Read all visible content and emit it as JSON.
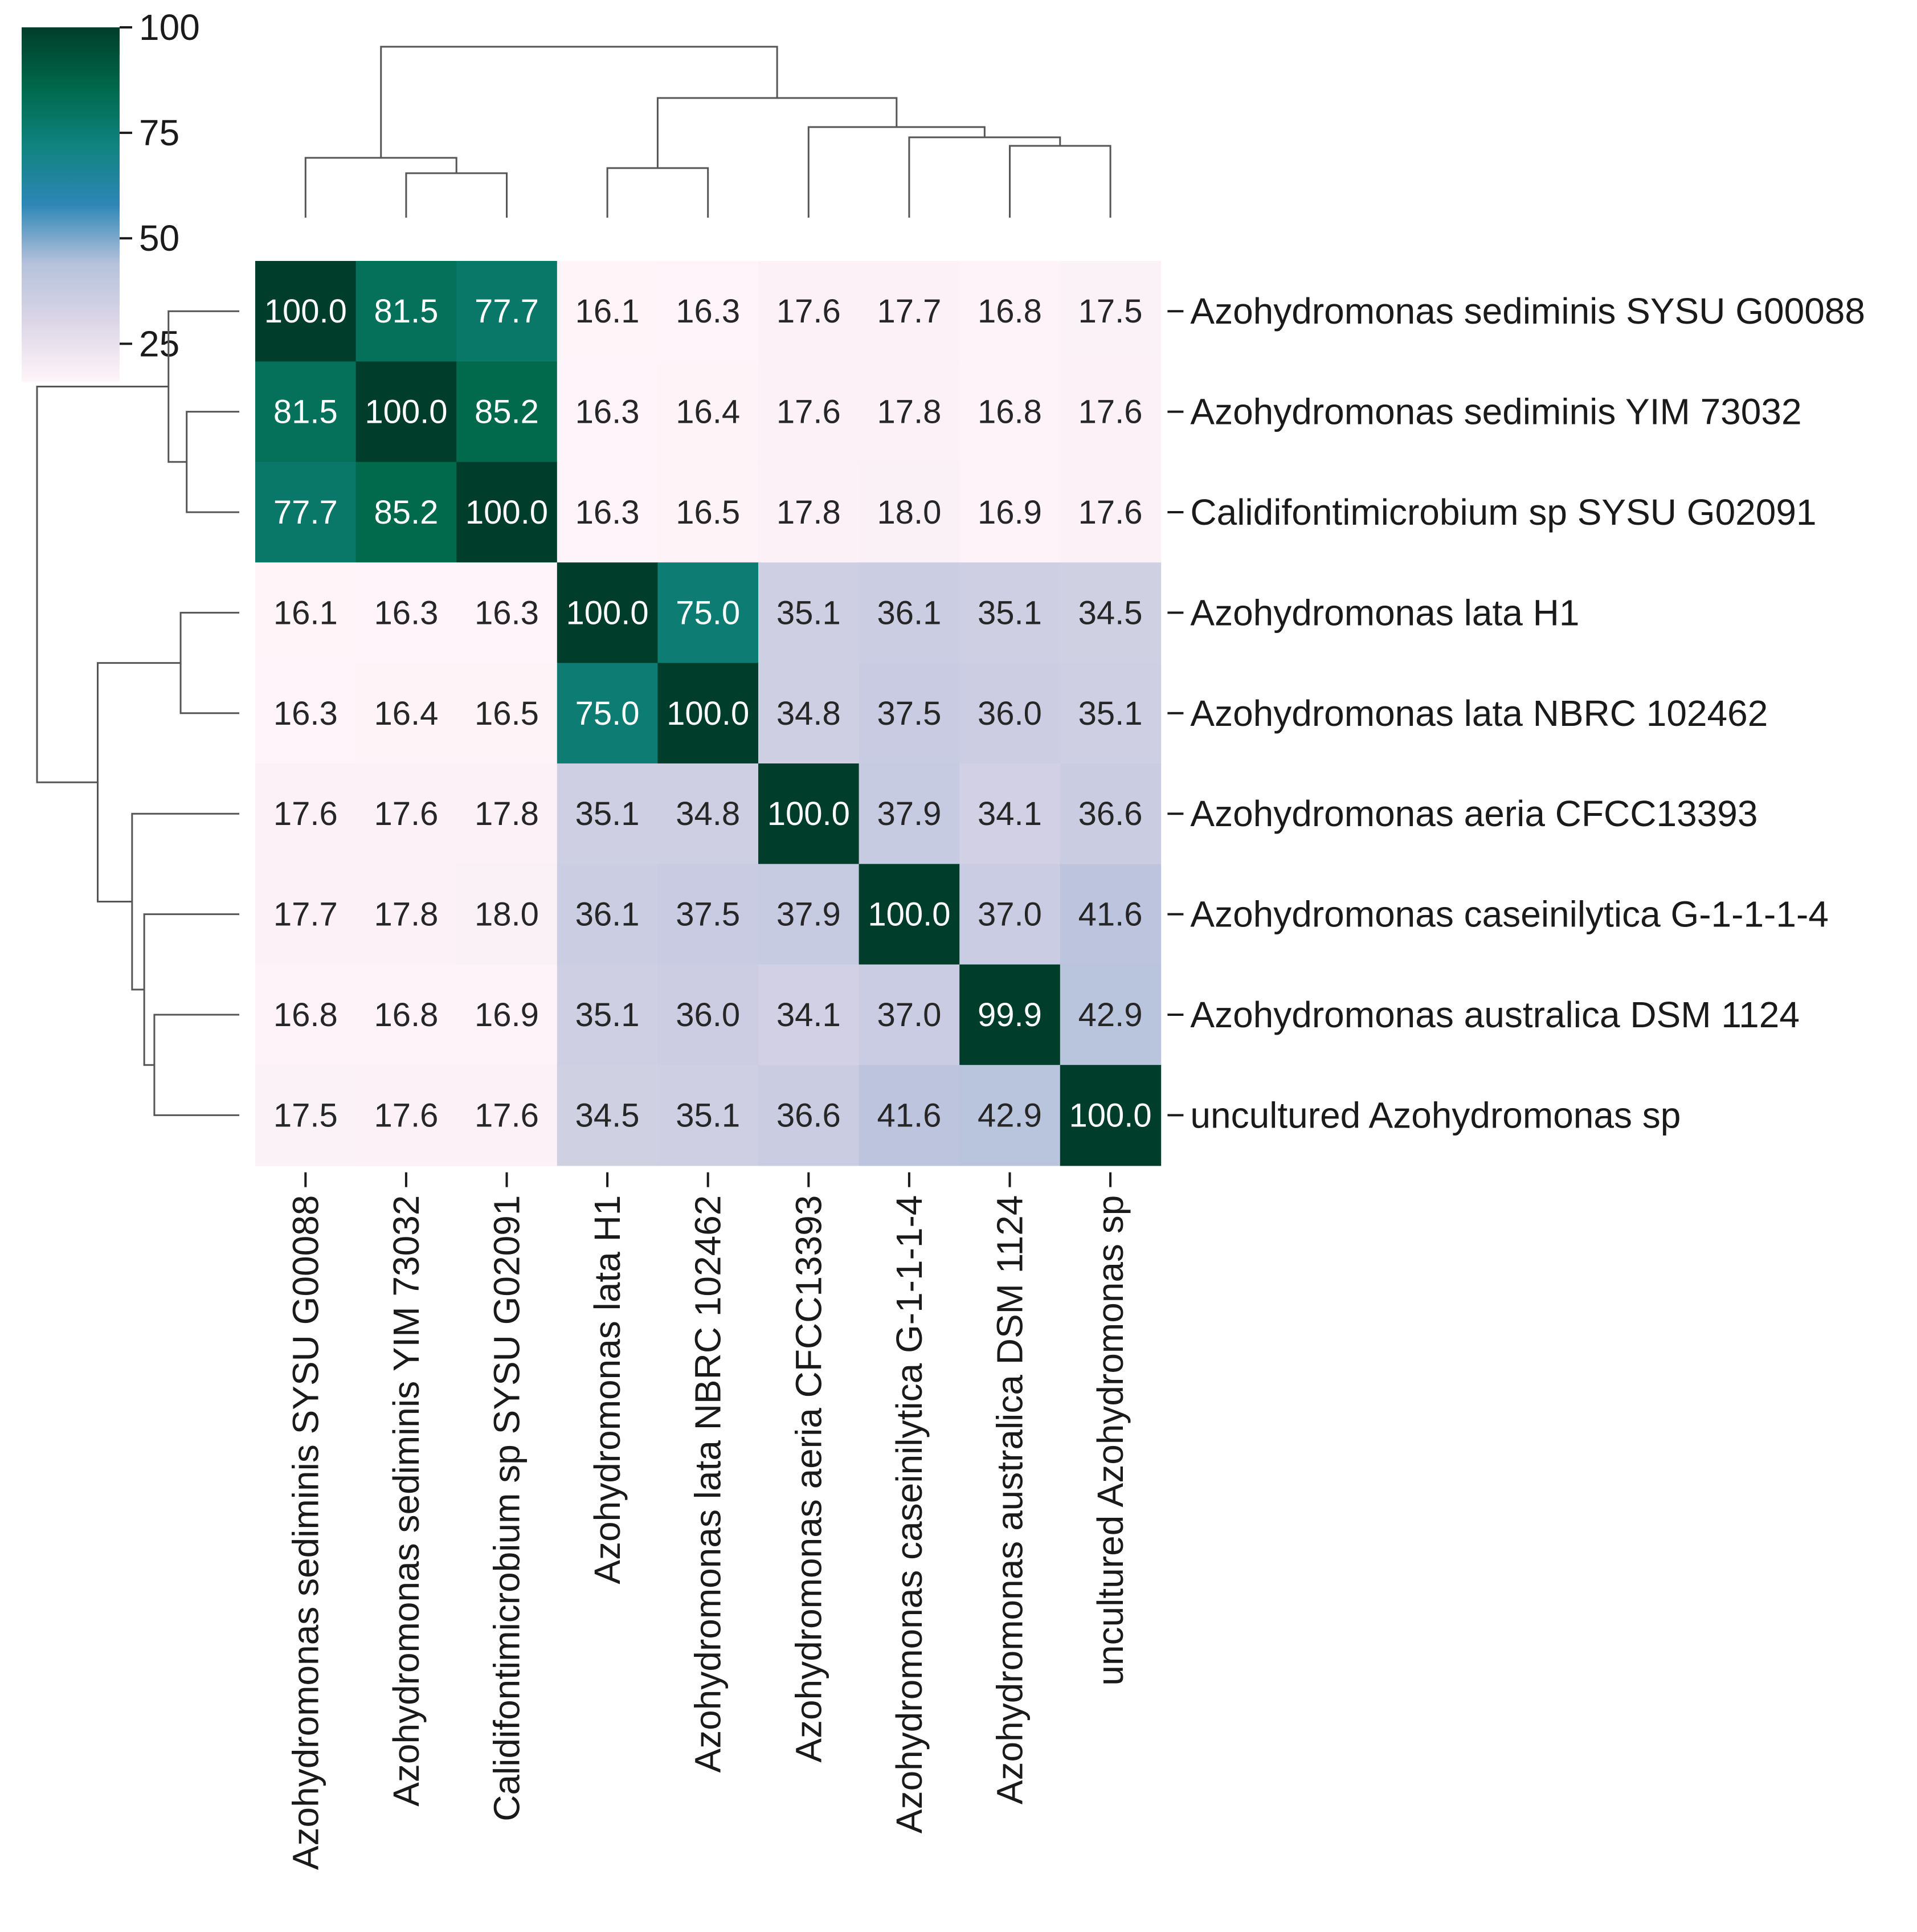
{
  "chart_data": {
    "type": "heatmap",
    "title": "",
    "labels": [
      "Azohydromonas sediminis SYSU G00088",
      "Azohydromonas sediminis YIM 73032",
      "Calidifontimicrobium sp SYSU G02091",
      "Azohydromonas lata H1",
      "Azohydromonas lata NBRC 102462",
      "Azohydromonas aeria CFCC13393",
      "Azohydromonas caseinilytica G-1-1-1-4",
      "Azohydromonas australica DSM 1124",
      "uncultured Azohydromonas sp"
    ],
    "values": [
      [
        100.0,
        81.5,
        77.7,
        16.1,
        16.3,
        17.6,
        17.7,
        16.8,
        17.5
      ],
      [
        81.5,
        100.0,
        85.2,
        16.3,
        16.4,
        17.6,
        17.8,
        16.8,
        17.6
      ],
      [
        77.7,
        85.2,
        100.0,
        16.3,
        16.5,
        17.8,
        18.0,
        16.9,
        17.6
      ],
      [
        16.1,
        16.3,
        16.3,
        100.0,
        75.0,
        35.1,
        36.1,
        35.1,
        34.5
      ],
      [
        16.3,
        16.4,
        16.5,
        75.0,
        100.0,
        34.8,
        37.5,
        36.0,
        35.1
      ],
      [
        17.6,
        17.6,
        17.8,
        35.1,
        34.8,
        100.0,
        37.9,
        34.1,
        36.6
      ],
      [
        17.7,
        17.8,
        18.0,
        36.1,
        37.5,
        37.9,
        100.0,
        37.0,
        41.6
      ],
      [
        16.8,
        16.8,
        16.9,
        35.1,
        36.0,
        34.1,
        37.0,
        99.9,
        42.9
      ],
      [
        17.5,
        17.6,
        17.6,
        34.5,
        35.1,
        36.6,
        41.6,
        42.9,
        100.0
      ]
    ],
    "colorbar": {
      "min": 16,
      "max": 100,
      "ticks": [
        25,
        50,
        75,
        100
      ],
      "tick_labels": [
        "25",
        "50",
        "75",
        "100"
      ]
    },
    "colormap": [
      "#fff5f9",
      "#dcd6e7",
      "#b6c2dc",
      "#2e86b6",
      "#10837f",
      "#00684a",
      "#003d2a"
    ],
    "dendrogram_heights": {
      "H1_NBRC": 0.29,
      "YIM_G02091": 0.26,
      "G00088_cluster": 0.35,
      "australica_uncultured": 0.42,
      "caseinilytica_group": 0.47,
      "aeria_group": 0.53,
      "lata_aeria_group": 0.7,
      "root": 1.0
    }
  }
}
